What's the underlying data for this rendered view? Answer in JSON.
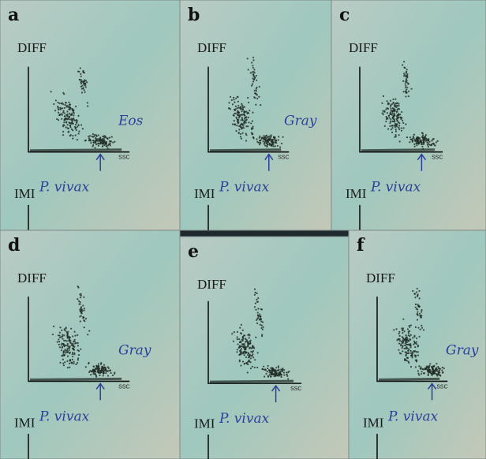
{
  "panels": [
    {
      "label": "a",
      "plot_title": "DIFF",
      "axis_label": "SSC",
      "lower_title": "IMI",
      "notes": [
        "Eos",
        "P. vivax"
      ]
    },
    {
      "label": "b",
      "plot_title": "DIFF",
      "axis_label": "SSC",
      "lower_title": "IMI",
      "notes": [
        "Gray",
        "P. vivax"
      ]
    },
    {
      "label": "c",
      "plot_title": "DIFF",
      "axis_label": "SSC",
      "lower_title": "IMI",
      "notes": [
        "P. vivax"
      ]
    },
    {
      "label": "d",
      "plot_title": "DIFF",
      "axis_label": "SSC",
      "lower_title": "IMI",
      "notes": [
        "Gray",
        "P. vivax"
      ]
    },
    {
      "label": "e",
      "plot_title": "DIFF",
      "axis_label": "SSC",
      "lower_title": "IMI",
      "notes": [
        "P. vivax"
      ]
    },
    {
      "label": "f",
      "plot_title": "DIFF",
      "axis_label": "SSC",
      "lower_title": "IMI",
      "notes": [
        "Gray",
        "P. vivax"
      ]
    }
  ]
}
